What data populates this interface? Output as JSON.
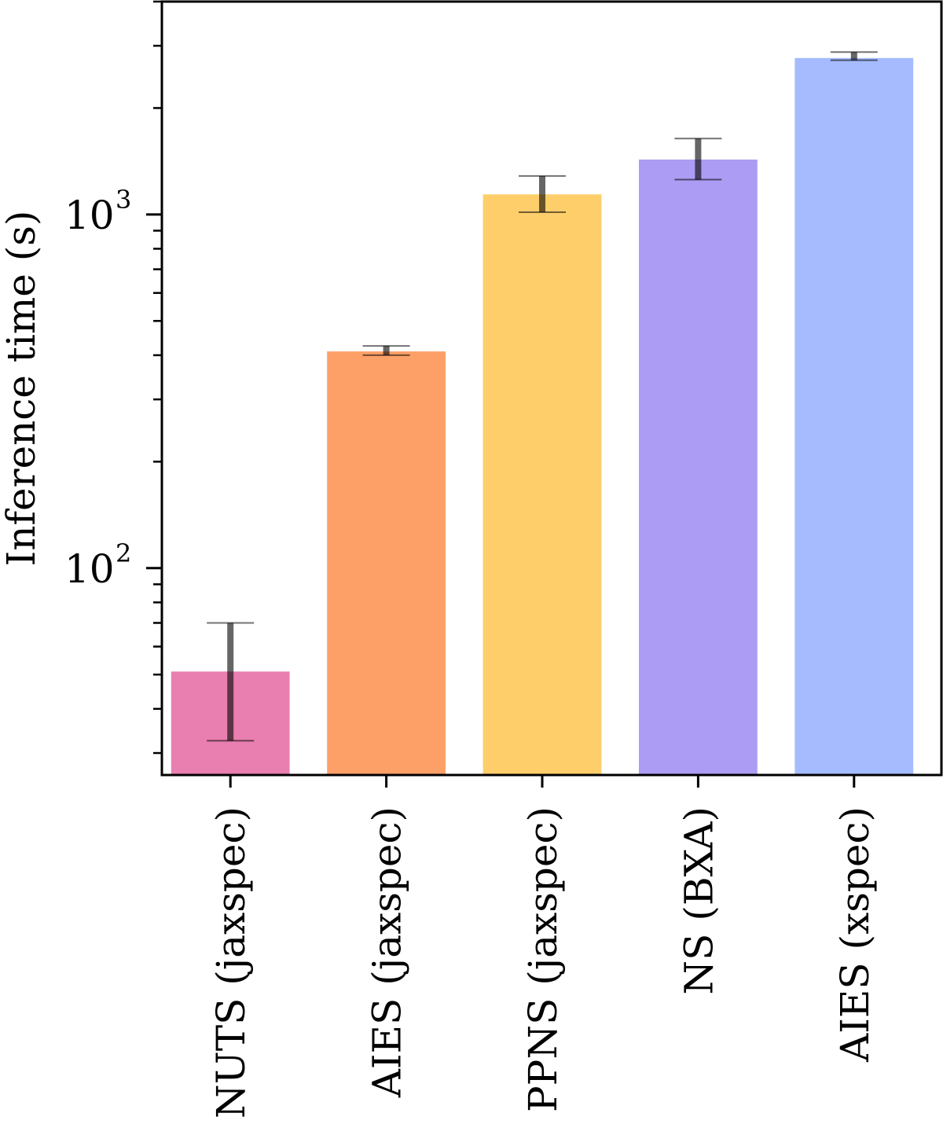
{
  "chart_data": {
    "type": "bar",
    "categories": [
      "NUTS (jaxspec)",
      "AIES (jaxspec)",
      "PPNS (jaxspec)",
      "NS (BXA)",
      "AIES (xspec)"
    ],
    "values": [
      51,
      410,
      1140,
      1430,
      2770
    ],
    "error_low": [
      32.5,
      400,
      1015,
      1255,
      2730
    ],
    "error_high": [
      70,
      425,
      1285,
      1640,
      2880
    ],
    "colors": [
      "#e97fb0",
      "#fca068",
      "#fdce6a",
      "#ac9cf3",
      "#a5bbfe"
    ],
    "ylabel": "Inference time (s)",
    "yscale": "log",
    "ylim": [
      26,
      4000
    ],
    "yticks": [
      {
        "base": "10",
        "exp": "2",
        "value": 100
      },
      {
        "base": "10",
        "exp": "3",
        "value": 1000
      }
    ],
    "grid": false
  }
}
